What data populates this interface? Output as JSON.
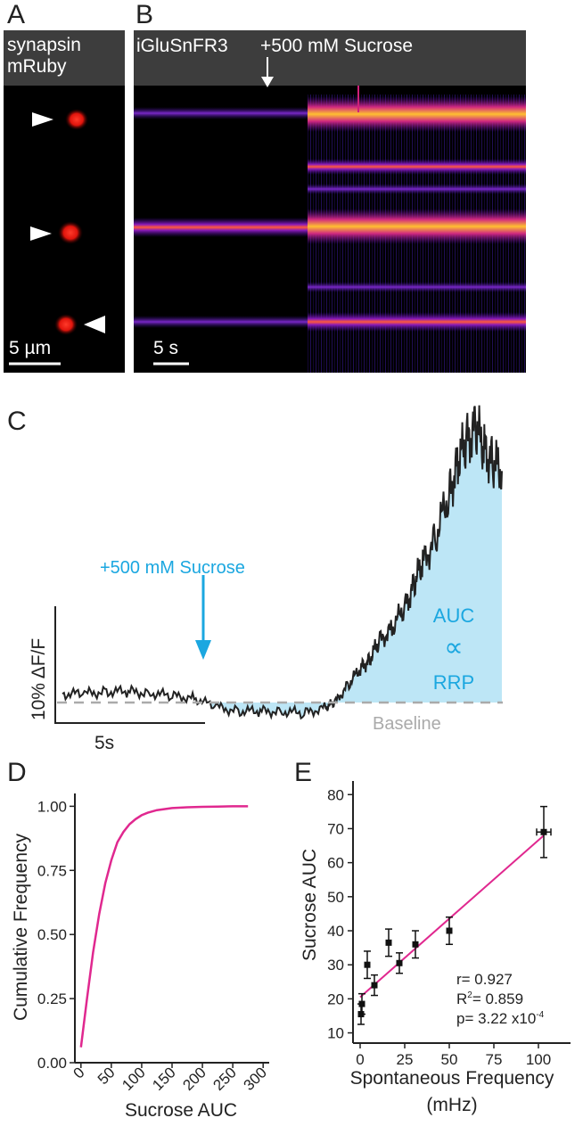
{
  "panels": {
    "a": {
      "letter": "A",
      "header_line1": "synapsin",
      "header_line2": "mRuby",
      "scalebar_label": "5 µm"
    },
    "b": {
      "letter": "B",
      "header_label": "iGluSnFR3",
      "stimulus_label": "+500 mM Sucrose",
      "scalebar_label": "5 s"
    },
    "c": {
      "letter": "C",
      "stimulus_label": "+500 mM Sucrose",
      "y_scalebar_label": "10% ΔF/F",
      "x_scalebar_label": "5s",
      "auc_line1": "AUC",
      "auc_line2": "∝",
      "auc_line3": "RRP",
      "baseline_label": "Baseline"
    },
    "d": {
      "letter": "D",
      "ylabel": "Cumulative Frequency",
      "xlabel": "Sucrose AUC"
    },
    "e": {
      "letter": "E",
      "ylabel": "Sucrose AUC",
      "xlabel_line1": "Spontaneous Frequency",
      "xlabel_line2": "(mHz)",
      "stat_r": "r= 0.927",
      "stat_r2_prefix": "R",
      "stat_r2_sup": "2",
      "stat_r2_value": "= 0.859",
      "stat_p_prefix": "p= 3.22 x10",
      "stat_p_sup": "-4"
    }
  },
  "colors": {
    "accent_blue": "#1ba7e0",
    "auc_fill": "#bde6f6",
    "magenta": "#e0288f",
    "header_bg": "#3d3d3d",
    "baseline_gray": "#aaaaaa"
  },
  "chart_data": [
    {
      "id": "D",
      "type": "line",
      "title": "",
      "xlabel": "Sucrose AUC",
      "ylabel": "Cumulative Frequency",
      "xlim": [
        -10,
        310
      ],
      "ylim": [
        0,
        1.05
      ],
      "xticks": [
        0,
        50,
        100,
        150,
        200,
        250,
        300
      ],
      "yticks": [
        0.0,
        0.25,
        0.5,
        0.75,
        1.0
      ],
      "ytick_labels": [
        "0.00",
        "0.25",
        "0.50",
        "0.75",
        "1.00"
      ],
      "series": [
        {
          "name": "cumulative",
          "x": [
            0,
            10,
            20,
            30,
            40,
            50,
            60,
            70,
            80,
            90,
            100,
            110,
            125,
            150,
            175,
            200,
            225,
            250,
            275
          ],
          "y": [
            0.06,
            0.25,
            0.43,
            0.58,
            0.7,
            0.79,
            0.86,
            0.9,
            0.93,
            0.95,
            0.965,
            0.975,
            0.985,
            0.993,
            0.996,
            0.998,
            0.999,
            1.0,
            1.0
          ]
        }
      ]
    },
    {
      "id": "E",
      "type": "scatter",
      "title": "",
      "xlabel": "Spontaneous Frequency (mHz)",
      "ylabel": "Sucrose AUC",
      "xlim": [
        -4,
        118
      ],
      "ylim": [
        7,
        84
      ],
      "xticks": [
        0,
        25,
        50,
        75,
        100
      ],
      "yticks": [
        10,
        20,
        30,
        40,
        50,
        60,
        70,
        80
      ],
      "points": [
        {
          "x": 0.5,
          "y": 15.5,
          "yerr": 3.0,
          "xerr": 0
        },
        {
          "x": 1.0,
          "y": 18.5,
          "yerr": 3.0,
          "xerr": 0
        },
        {
          "x": 4.0,
          "y": 30.0,
          "yerr": 4.0,
          "xerr": 0
        },
        {
          "x": 8.0,
          "y": 24.0,
          "yerr": 3.0,
          "xerr": 0
        },
        {
          "x": 16.0,
          "y": 36.5,
          "yerr": 4.0,
          "xerr": 0
        },
        {
          "x": 22.0,
          "y": 30.5,
          "yerr": 3.0,
          "xerr": 0
        },
        {
          "x": 31.0,
          "y": 36.0,
          "yerr": 4.0,
          "xerr": 0
        },
        {
          "x": 50.0,
          "y": 40.0,
          "yerr": 4.0,
          "xerr": 0
        },
        {
          "x": 103.0,
          "y": 69.0,
          "yerr": 7.5,
          "xerr": 4.0
        }
      ],
      "fit": {
        "x": [
          0,
          103
        ],
        "y": [
          20.5,
          68.0
        ]
      }
    },
    {
      "id": "C",
      "type": "area",
      "title": "",
      "xlabel": "",
      "ylabel": "",
      "baseline": 0.0,
      "xlim": [
        0,
        100
      ],
      "ylim": [
        -4,
        64
      ],
      "stimulus_x": 33,
      "series": [
        {
          "name": "ΔF/F trace",
          "x": [
            0,
            5,
            10,
            15,
            20,
            25,
            30,
            35,
            40,
            45,
            50,
            55,
            60,
            62,
            65,
            68,
            70,
            72,
            75,
            78,
            80,
            82,
            85,
            88,
            90,
            92,
            94,
            96,
            98,
            100
          ],
          "y": [
            2,
            2,
            2.5,
            2.5,
            2.2,
            1.5,
            1.0,
            -1,
            -2,
            -2,
            -2,
            -2.5,
            -1,
            0,
            4,
            8,
            10,
            14,
            17,
            22,
            27,
            32,
            38,
            48,
            55,
            60,
            63,
            58,
            55,
            53
          ]
        }
      ]
    }
  ]
}
